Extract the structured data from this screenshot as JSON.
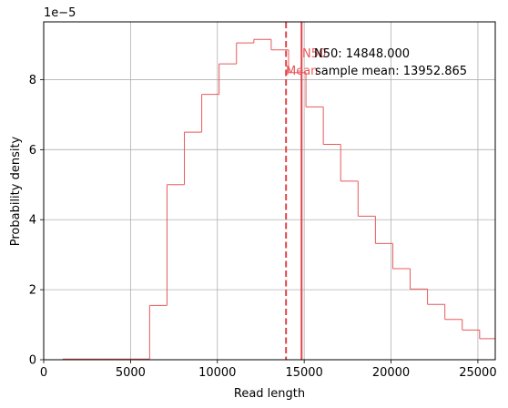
{
  "chart_data": {
    "type": "histogram",
    "xlabel": "Read length",
    "ylabel": "Probability density",
    "y_offset_label": "1e−5",
    "y_scale_exponent": -5,
    "xlim": [
      0,
      26000
    ],
    "ylim": [
      0,
      9.65
    ],
    "x_ticks": [
      0,
      5000,
      10000,
      15000,
      20000,
      25000
    ],
    "x_tick_labels": [
      "0",
      "5000",
      "10000",
      "15000",
      "20000",
      "25000"
    ],
    "y_ticks": [
      0,
      2,
      4,
      6,
      8
    ],
    "y_tick_labels": [
      "0",
      "2",
      "4",
      "6",
      "8"
    ],
    "grid": true,
    "bin_edges": [
      1100,
      2100,
      3100,
      4100,
      5100,
      6100,
      7100,
      8100,
      9100,
      10100,
      11100,
      12100,
      13100,
      14100,
      15100,
      16100,
      17100,
      18100,
      19100,
      20100,
      21100,
      22100,
      23100,
      24100,
      25100,
      26100
    ],
    "density": [
      0.02,
      0.02,
      0.02,
      0.02,
      0.02,
      1.55,
      5.0,
      6.5,
      7.58,
      8.45,
      9.05,
      9.15,
      8.85,
      8.2,
      7.22,
      6.15,
      5.1,
      4.1,
      3.32,
      2.6,
      2.02,
      1.58,
      1.15,
      0.85,
      0.6
    ],
    "color": "#e8585a",
    "lines": [
      {
        "name": "Mean",
        "x": 13952.865,
        "style": "dashed",
        "label": "Mean",
        "value_text": "sample mean: 13952.865"
      },
      {
        "name": "N50",
        "x": 14848.0,
        "style": "solid",
        "label": "N50",
        "value_text": "N50: 14848.000"
      }
    ]
  }
}
